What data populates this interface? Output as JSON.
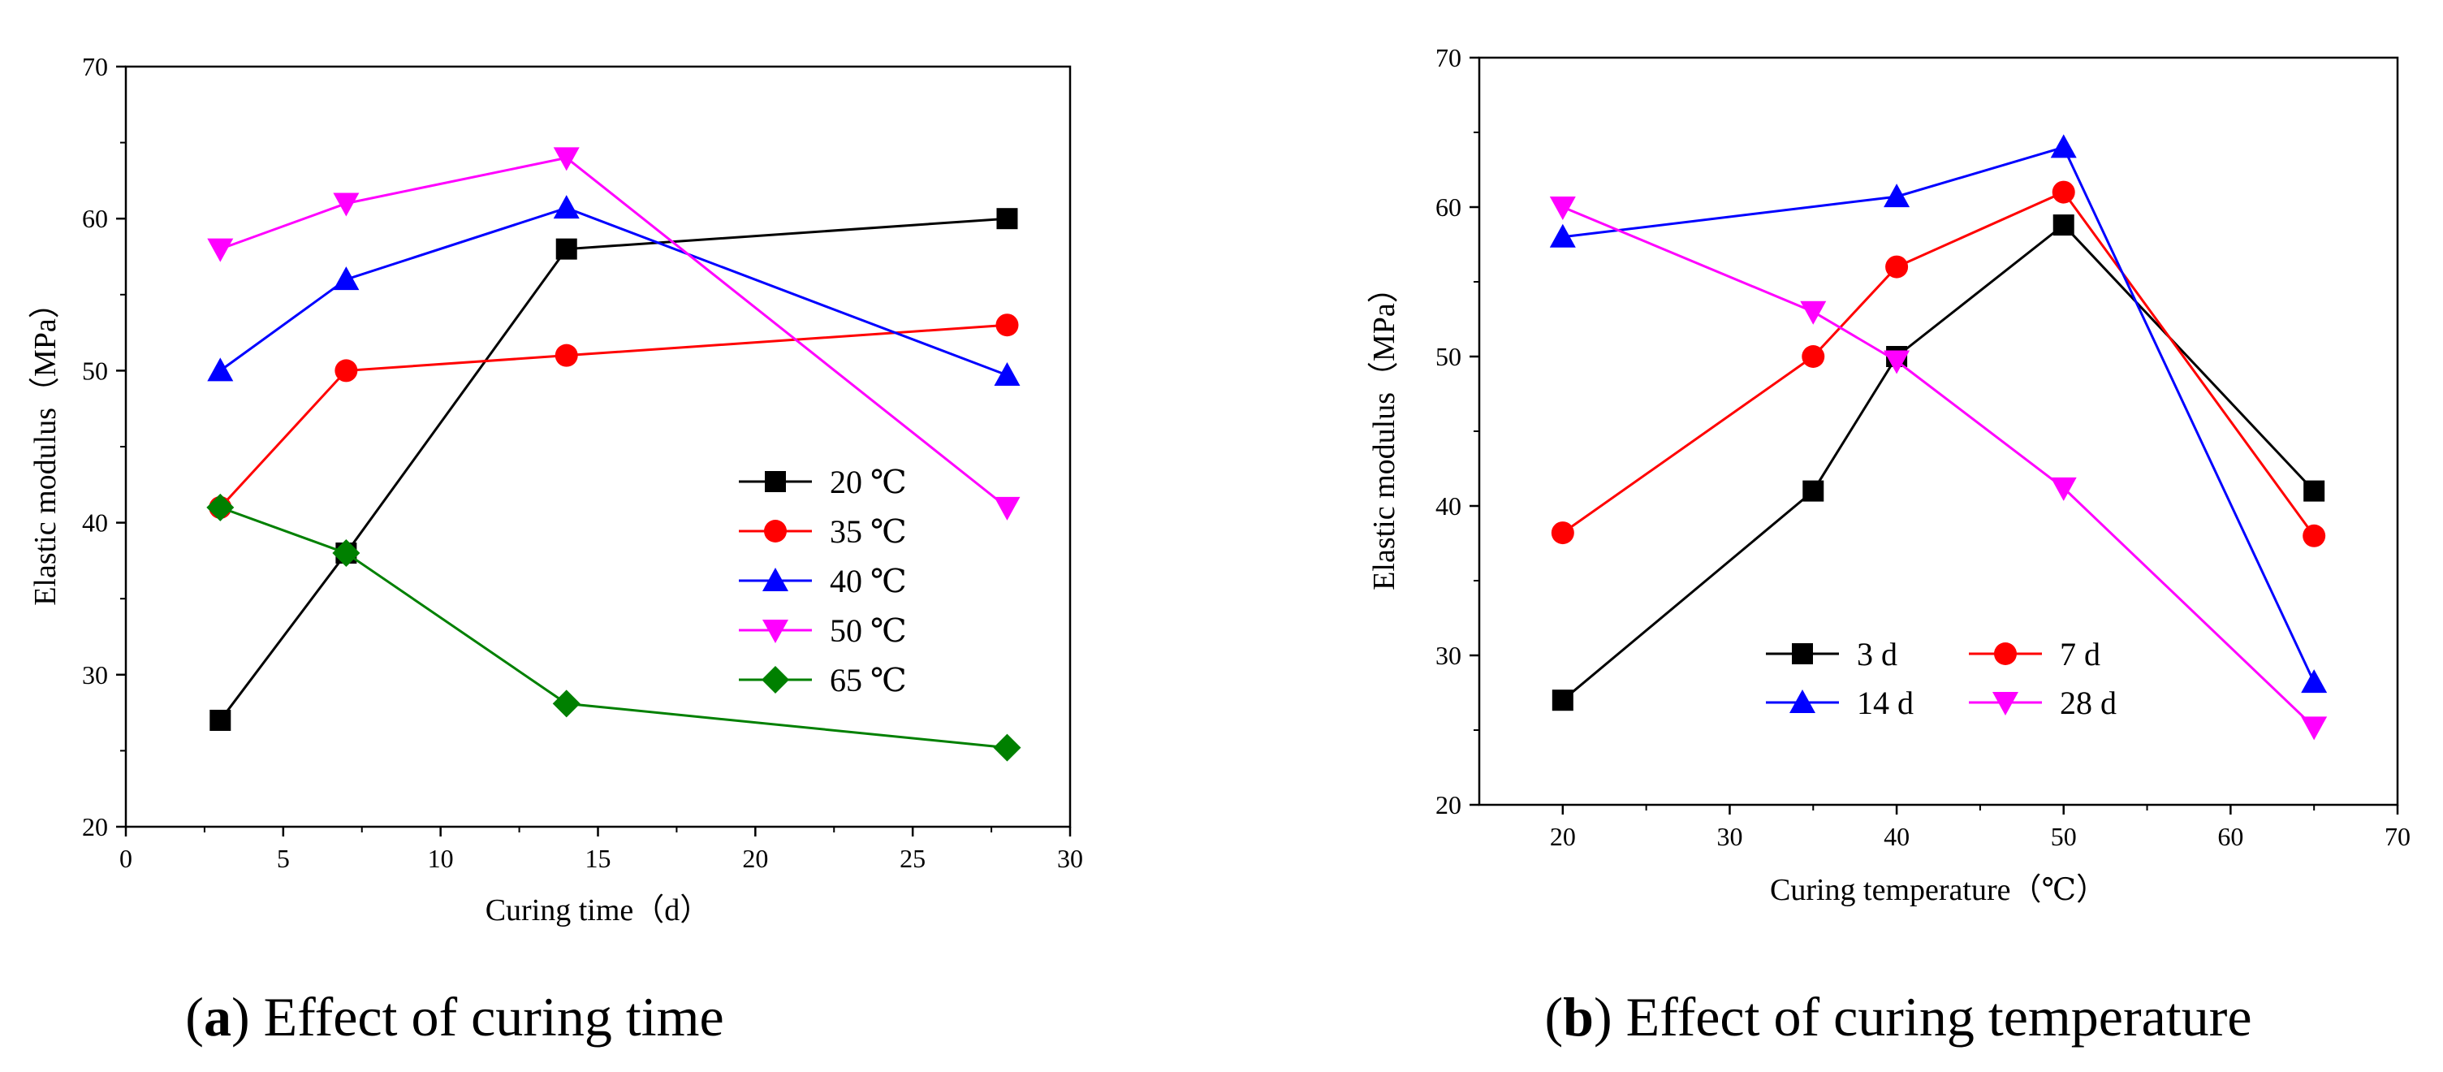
{
  "captions": {
    "a": {
      "letter": "a",
      "text": " Effect of curing time"
    },
    "b": {
      "letter": "b",
      "text": " Effect of curing temperature"
    }
  },
  "chart_data": [
    {
      "type": "line",
      "xlabel": "Curing time（d）",
      "ylabel": "Elastic modulus（MPa）",
      "xlim": [
        0,
        30
      ],
      "ylim": [
        20,
        70
      ],
      "xticks": [
        0,
        5,
        10,
        15,
        20,
        25,
        30
      ],
      "yticks": [
        20,
        30,
        40,
        50,
        60,
        70
      ],
      "x": [
        3,
        7,
        14,
        28
      ],
      "legend_position": "right-center",
      "legend_columns": 1,
      "series": [
        {
          "name": "20 ℃",
          "color": "#000000",
          "marker": "square",
          "values": [
            27,
            38,
            58,
            60
          ]
        },
        {
          "name": "35 ℃",
          "color": "#ff0000",
          "marker": "circle",
          "values": [
            41,
            50,
            51,
            53
          ]
        },
        {
          "name": "40 ℃",
          "color": "#0000ff",
          "marker": "triangle-up",
          "values": [
            50,
            56,
            60.7,
            49.7
          ]
        },
        {
          "name": "50 ℃",
          "color": "#ff00ff",
          "marker": "triangle-down",
          "values": [
            58,
            61,
            64,
            41
          ]
        },
        {
          "name": "65 ℃",
          "color": "#008000",
          "marker": "diamond",
          "values": [
            41,
            38,
            28.1,
            25.2
          ]
        }
      ]
    },
    {
      "type": "line",
      "xlabel": "Curing temperature（℃）",
      "ylabel": "Elastic modulus（MPa）",
      "xlim": [
        15,
        70
      ],
      "ylim": [
        20,
        70
      ],
      "xticks": [
        20,
        30,
        40,
        50,
        60,
        70
      ],
      "yticks": [
        20,
        30,
        40,
        50,
        60,
        70
      ],
      "x": [
        20,
        35,
        40,
        50,
        65
      ],
      "legend_position": "bottom-left",
      "legend_columns": 2,
      "series": [
        {
          "name": "3 d",
          "color": "#000000",
          "marker": "square",
          "values": [
            27,
            41,
            50,
            58.8,
            41
          ]
        },
        {
          "name": "7 d",
          "color": "#ff0000",
          "marker": "circle",
          "values": [
            38.2,
            50,
            56,
            61,
            38
          ]
        },
        {
          "name": "14 d",
          "color": "#0000ff",
          "marker": "triangle-up",
          "values": [
            58,
            null,
            60.7,
            64,
            28.2
          ]
        },
        {
          "name": "28 d",
          "color": "#ff00ff",
          "marker": "triangle-down",
          "values": [
            60,
            53,
            49.7,
            41.2,
            25.2
          ]
        }
      ]
    }
  ]
}
